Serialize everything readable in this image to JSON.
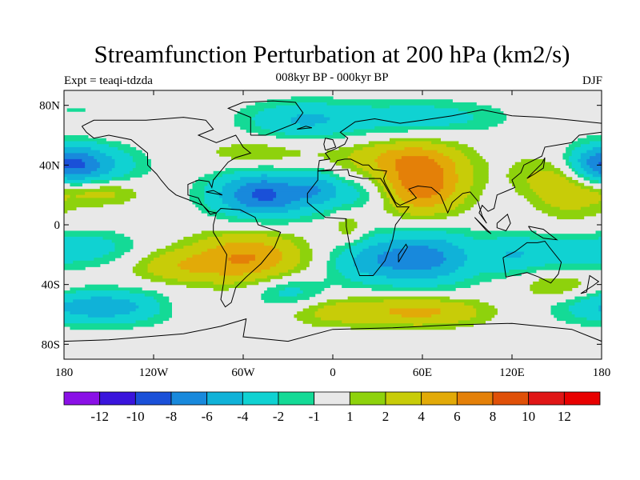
{
  "chart_data": {
    "type": "heatmap",
    "title": "Streamfunction Perturbation at 200 hPa (km2/s)",
    "subtitle": "008kyr BP - 000kyr BP",
    "left_label": "Expt = teaqi-tdzda",
    "right_label": "DJF",
    "xlim": [
      -180,
      180
    ],
    "ylim": [
      -90,
      90
    ],
    "x_ticks": [
      {
        "value": -180,
        "label": "180"
      },
      {
        "value": -120,
        "label": "120W"
      },
      {
        "value": -60,
        "label": "60W"
      },
      {
        "value": 0,
        "label": "0"
      },
      {
        "value": 60,
        "label": "60E"
      },
      {
        "value": 120,
        "label": "120E"
      },
      {
        "value": 180,
        "label": "180"
      }
    ],
    "y_ticks": [
      {
        "value": 80,
        "label": "80N"
      },
      {
        "value": 40,
        "label": "40N"
      },
      {
        "value": 0,
        "label": "0"
      },
      {
        "value": -40,
        "label": "40S"
      },
      {
        "value": -80,
        "label": "80S"
      }
    ],
    "levels": [
      -12,
      -10,
      -8,
      -6,
      -4,
      -2,
      -1,
      1,
      2,
      4,
      6,
      8,
      10,
      12
    ],
    "level_labels": [
      "-12",
      "-10",
      "-8",
      "-6",
      "-4",
      "-2",
      "-1",
      "1",
      "2",
      "4",
      "6",
      "8",
      "10",
      "12"
    ],
    "colors": [
      "#8a10e6",
      "#3a14dc",
      "#1a50d8",
      "#1889dc",
      "#10b2d8",
      "#10d2d2",
      "#14da96",
      "#e8e8e8",
      "#8ed20c",
      "#c8cc08",
      "#e2aa08",
      "#e48008",
      "#e05008",
      "#e01616",
      "#e80000"
    ],
    "anomaly_centers": [
      {
        "lon": -46,
        "lat": 20,
        "value": -8.5,
        "sx": 24,
        "sy": 11
      },
      {
        "lon": -10,
        "lat": 25,
        "value": -3,
        "sx": 10,
        "sy": 8
      },
      {
        "lon": 15,
        "lat": 20,
        "value": -2.5,
        "sx": 16,
        "sy": 8
      },
      {
        "lon": -170,
        "lat": 40,
        "value": -5.5,
        "sx": 26,
        "sy": 10
      },
      {
        "lon": 180,
        "lat": 40,
        "value": -4.5,
        "sx": 16,
        "sy": 9
      },
      {
        "lon": 140,
        "lat": 20,
        "value": -3,
        "sx": 20,
        "sy": 12
      },
      {
        "lon": -20,
        "lat": 70,
        "value": -4,
        "sx": 28,
        "sy": 9
      },
      {
        "lon": 60,
        "lat": 72,
        "value": -3,
        "sx": 38,
        "sy": 8
      },
      {
        "lon": -160,
        "lat": 72,
        "value": -2,
        "sx": 28,
        "sy": 8
      },
      {
        "lon": 60,
        "lat": -22,
        "value": -7,
        "sx": 26,
        "sy": 13
      },
      {
        "lon": 20,
        "lat": -25,
        "value": -3,
        "sx": 18,
        "sy": 10
      },
      {
        "lon": -155,
        "lat": -55,
        "value": -5.5,
        "sx": 36,
        "sy": 8
      },
      {
        "lon": -30,
        "lat": -45,
        "value": -3,
        "sx": 18,
        "sy": 8
      },
      {
        "lon": -160,
        "lat": -15,
        "value": -2.5,
        "sx": 22,
        "sy": 8
      },
      {
        "lon": 150,
        "lat": -20,
        "value": -3,
        "sx": 28,
        "sy": 10
      },
      {
        "lon": 120,
        "lat": -20,
        "value": -2,
        "sx": 12,
        "sy": 10
      },
      {
        "lon": 60,
        "lat": 28,
        "value": 7.5,
        "sx": 20,
        "sy": 15
      },
      {
        "lon": 40,
        "lat": 45,
        "value": 3,
        "sx": 30,
        "sy": 8
      },
      {
        "lon": 150,
        "lat": 25,
        "value": 6.5,
        "sx": 22,
        "sy": 14
      },
      {
        "lon": -57,
        "lat": -22,
        "value": 6,
        "sx": 26,
        "sy": 12
      },
      {
        "lon": -105,
        "lat": -28,
        "value": 3,
        "sx": 22,
        "sy": 8
      },
      {
        "lon": -155,
        "lat": 22,
        "value": 3,
        "sx": 18,
        "sy": 6
      },
      {
        "lon": -150,
        "lat": 68,
        "value": 2.5,
        "sx": 22,
        "sy": 6
      },
      {
        "lon": -50,
        "lat": 48,
        "value": 2,
        "sx": 26,
        "sy": 7
      },
      {
        "lon": 60,
        "lat": -58,
        "value": 4.5,
        "sx": 30,
        "sy": 7
      },
      {
        "lon": 0,
        "lat": -58,
        "value": 2.5,
        "sx": 24,
        "sy": 7
      },
      {
        "lon": 10,
        "lat": -2,
        "value": 2,
        "sx": 8,
        "sy": 8
      },
      {
        "lon": 150,
        "lat": -40,
        "value": 2.5,
        "sx": 20,
        "sy": 8
      },
      {
        "lon": -100,
        "lat": -55,
        "value": 1.5,
        "sx": 18,
        "sy": 6
      }
    ]
  }
}
